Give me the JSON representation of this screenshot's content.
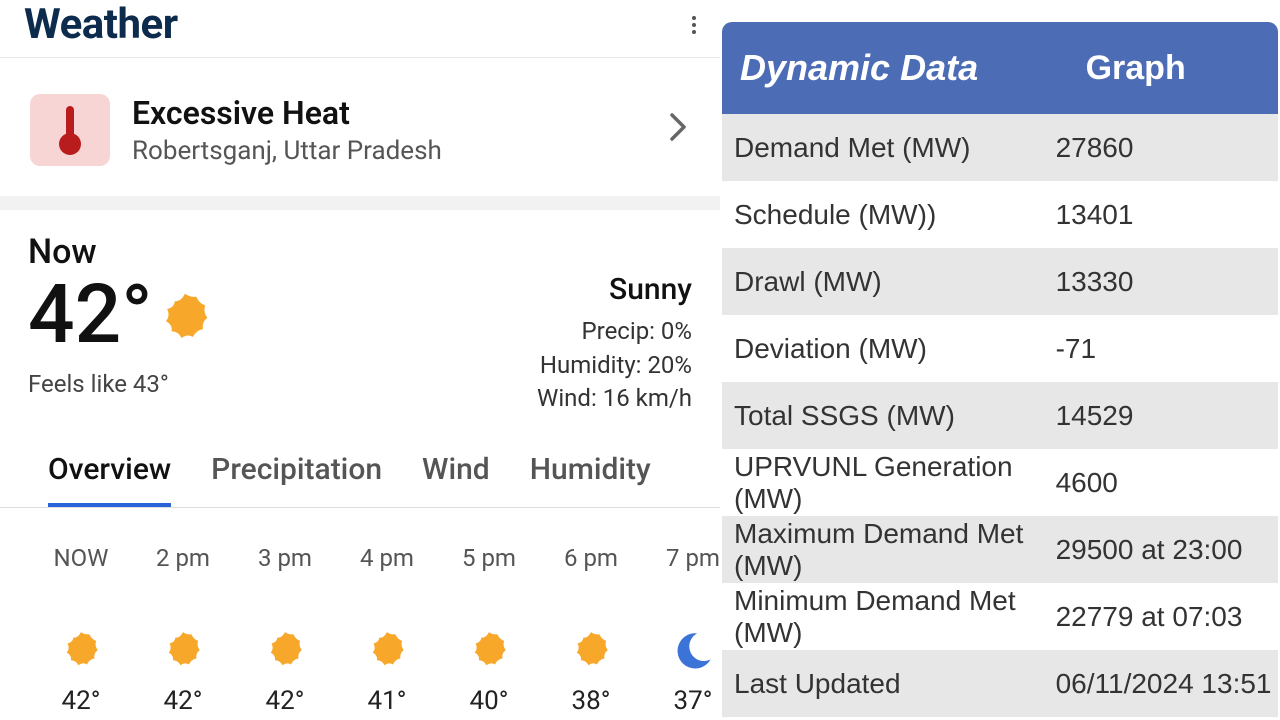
{
  "weather": {
    "title": "Weather",
    "alert": {
      "title": "Excessive Heat",
      "location": "Robertsganj, Uttar Pradesh",
      "icon_bg": "#f8d5d5",
      "icon_color": "#b91c1c"
    },
    "now": {
      "label": "Now",
      "temp": "42°",
      "condition": "Sunny",
      "feels_like": "Feels like 43°",
      "precip": "Precip: 0%",
      "humidity": "Humidity: 20%",
      "wind": "Wind: 16 km/h"
    },
    "tabs": [
      {
        "label": "Overview",
        "active": true
      },
      {
        "label": "Precipitation",
        "active": false
      },
      {
        "label": "Wind",
        "active": false
      },
      {
        "label": "Humidity",
        "active": false
      }
    ],
    "hourly": [
      {
        "time": "NOW",
        "temp": "42°",
        "icon": "sun"
      },
      {
        "time": "2 pm",
        "temp": "42°",
        "icon": "sun"
      },
      {
        "time": "3 pm",
        "temp": "42°",
        "icon": "sun"
      },
      {
        "time": "4 pm",
        "temp": "41°",
        "icon": "sun"
      },
      {
        "time": "5 pm",
        "temp": "40°",
        "icon": "sun"
      },
      {
        "time": "6 pm",
        "temp": "38°",
        "icon": "sun"
      },
      {
        "time": "7 pm",
        "temp": "37°",
        "icon": "moon"
      }
    ],
    "sun_color": "#f7a82b",
    "moon_color": "#3b73d6"
  },
  "data_panel": {
    "header_left": "Dynamic Data",
    "header_right": "Graph",
    "header_bg": "#4c6db5",
    "row_odd_bg": "#e7e7e7",
    "row_even_bg": "#ffffff",
    "rows": [
      {
        "label": "Demand Met (MW)",
        "value": "27860"
      },
      {
        "label": "Schedule (MW))",
        "value": "13401"
      },
      {
        "label": "Drawl (MW)",
        "value": "13330"
      },
      {
        "label": "Deviation (MW)",
        "value": "-71"
      },
      {
        "label": "Total SSGS (MW)",
        "value": "14529"
      },
      {
        "label": "UPRVUNL Generation (MW)",
        "value": "4600"
      },
      {
        "label": "Maximum Demand Met (MW)",
        "value": "29500 at 23:00"
      },
      {
        "label": "Minimum Demand Met (MW)",
        "value": "22779 at 07:03"
      },
      {
        "label": "Last Updated",
        "value": "06/11/2024 13:51"
      }
    ]
  }
}
